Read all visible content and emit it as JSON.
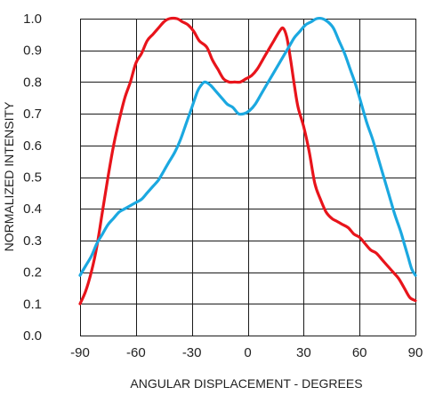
{
  "chart_data": {
    "type": "line",
    "xlabel": "ANGULAR DISPLACEMENT - DEGREES",
    "ylabel": "NORMALIZED INTENSITY",
    "xlim": [
      -90,
      90
    ],
    "ylim": [
      0,
      1
    ],
    "xticks": [
      -90,
      -60,
      -30,
      0,
      30,
      60,
      90
    ],
    "yticks": [
      "0.0",
      "0.1",
      "0.2",
      "0.3",
      "0.4",
      "0.5",
      "0.6",
      "0.7",
      "0.8",
      "0.9",
      "1.0"
    ],
    "grid": true,
    "series": [
      {
        "color": "#e8141b",
        "points": [
          [
            -90,
            0.1
          ],
          [
            -87,
            0.14
          ],
          [
            -84,
            0.2
          ],
          [
            -81,
            0.28
          ],
          [
            -78,
            0.39
          ],
          [
            -75,
            0.5
          ],
          [
            -72,
            0.6
          ],
          [
            -69,
            0.68
          ],
          [
            -66,
            0.75
          ],
          [
            -63,
            0.8
          ],
          [
            -60,
            0.86
          ],
          [
            -57,
            0.89
          ],
          [
            -54,
            0.93
          ],
          [
            -51,
            0.95
          ],
          [
            -48,
            0.97
          ],
          [
            -45,
            0.99
          ],
          [
            -42,
            1.0
          ],
          [
            -38,
            1.0
          ],
          [
            -35,
            0.99
          ],
          [
            -32,
            0.98
          ],
          [
            -29,
            0.96
          ],
          [
            -26,
            0.93
          ],
          [
            -22,
            0.91
          ],
          [
            -19,
            0.87
          ],
          [
            -16,
            0.84
          ],
          [
            -13,
            0.81
          ],
          [
            -10,
            0.8
          ],
          [
            -7,
            0.8
          ],
          [
            -4,
            0.8
          ],
          [
            -1,
            0.81
          ],
          [
            2,
            0.82
          ],
          [
            5,
            0.84
          ],
          [
            8,
            0.87
          ],
          [
            11,
            0.9
          ],
          [
            14,
            0.93
          ],
          [
            17,
            0.96
          ],
          [
            19,
            0.97
          ],
          [
            21,
            0.94
          ],
          [
            23,
            0.87
          ],
          [
            25,
            0.79
          ],
          [
            27,
            0.72
          ],
          [
            30,
            0.66
          ],
          [
            33,
            0.58
          ],
          [
            36,
            0.48
          ],
          [
            39,
            0.43
          ],
          [
            42,
            0.39
          ],
          [
            45,
            0.37
          ],
          [
            48,
            0.36
          ],
          [
            51,
            0.35
          ],
          [
            54,
            0.34
          ],
          [
            57,
            0.32
          ],
          [
            60,
            0.31
          ],
          [
            63,
            0.29
          ],
          [
            66,
            0.27
          ],
          [
            69,
            0.26
          ],
          [
            72,
            0.24
          ],
          [
            75,
            0.22
          ],
          [
            78,
            0.2
          ],
          [
            81,
            0.18
          ],
          [
            84,
            0.15
          ],
          [
            87,
            0.12
          ],
          [
            90,
            0.11
          ]
        ]
      },
      {
        "color": "#1ba8e0",
        "points": [
          [
            -90,
            0.19
          ],
          [
            -87,
            0.22
          ],
          [
            -84,
            0.25
          ],
          [
            -81,
            0.29
          ],
          [
            -78,
            0.32
          ],
          [
            -75,
            0.35
          ],
          [
            -72,
            0.37
          ],
          [
            -69,
            0.39
          ],
          [
            -66,
            0.4
          ],
          [
            -63,
            0.41
          ],
          [
            -60,
            0.42
          ],
          [
            -57,
            0.43
          ],
          [
            -54,
            0.45
          ],
          [
            -51,
            0.47
          ],
          [
            -48,
            0.49
          ],
          [
            -45,
            0.52
          ],
          [
            -42,
            0.55
          ],
          [
            -39,
            0.58
          ],
          [
            -36,
            0.62
          ],
          [
            -33,
            0.67
          ],
          [
            -30,
            0.72
          ],
          [
            -27,
            0.77
          ],
          [
            -25,
            0.79
          ],
          [
            -23,
            0.8
          ],
          [
            -20,
            0.79
          ],
          [
            -17,
            0.77
          ],
          [
            -14,
            0.75
          ],
          [
            -11,
            0.73
          ],
          [
            -8,
            0.72
          ],
          [
            -5,
            0.7
          ],
          [
            -2,
            0.7
          ],
          [
            1,
            0.71
          ],
          [
            4,
            0.73
          ],
          [
            7,
            0.76
          ],
          [
            10,
            0.79
          ],
          [
            13,
            0.82
          ],
          [
            16,
            0.85
          ],
          [
            19,
            0.88
          ],
          [
            22,
            0.91
          ],
          [
            25,
            0.94
          ],
          [
            28,
            0.96
          ],
          [
            31,
            0.98
          ],
          [
            34,
            0.99
          ],
          [
            37,
            1.0
          ],
          [
            40,
            1.0
          ],
          [
            43,
            0.99
          ],
          [
            46,
            0.97
          ],
          [
            49,
            0.93
          ],
          [
            52,
            0.89
          ],
          [
            55,
            0.84
          ],
          [
            58,
            0.79
          ],
          [
            61,
            0.73
          ],
          [
            64,
            0.67
          ],
          [
            67,
            0.62
          ],
          [
            70,
            0.56
          ],
          [
            73,
            0.5
          ],
          [
            76,
            0.44
          ],
          [
            79,
            0.38
          ],
          [
            82,
            0.33
          ],
          [
            84,
            0.29
          ],
          [
            86,
            0.25
          ],
          [
            88,
            0.21
          ],
          [
            90,
            0.19
          ]
        ]
      }
    ]
  }
}
